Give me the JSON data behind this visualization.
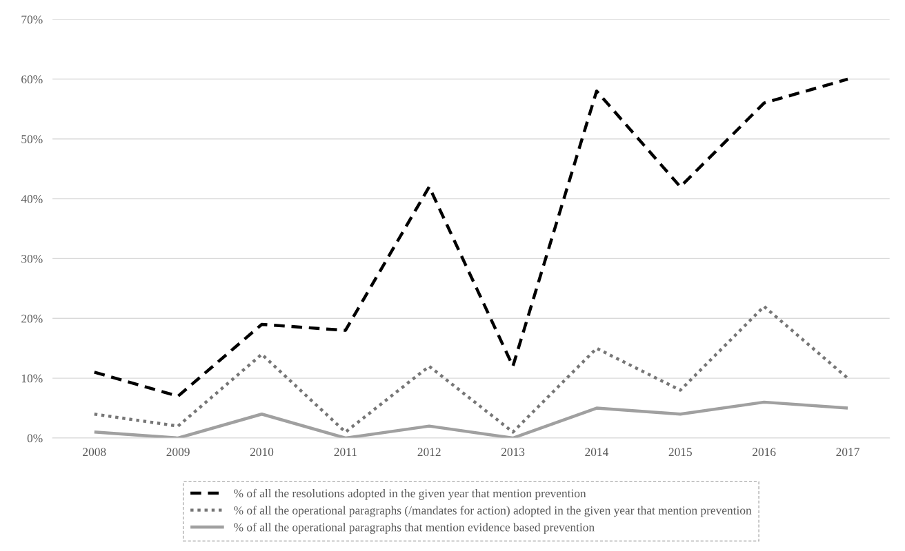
{
  "chart_data": {
    "type": "line",
    "categories": [
      "2008",
      "2009",
      "2010",
      "2011",
      "2012",
      "2013",
      "2014",
      "2015",
      "2016",
      "2017"
    ],
    "series": [
      {
        "name": "% of all the resolutions adopted in the given year that mention prevention",
        "color": "#000000",
        "line_style": "dashed",
        "values": [
          11,
          7,
          19,
          18,
          42,
          12,
          58,
          42,
          56,
          60
        ]
      },
      {
        "name": "% of all the operational paragraphs (/mandates for action) adopted in the given year that mention prevention",
        "color": "#767676",
        "line_style": "dotted",
        "values": [
          4,
          2,
          14,
          1,
          12,
          1,
          15,
          8,
          22,
          10
        ]
      },
      {
        "name": "% of all the operational paragraphs that mention evidence based prevention",
        "color": "#a0a0a0",
        "line_style": "solid",
        "values": [
          1,
          0,
          4,
          0,
          2,
          0,
          5,
          4,
          6,
          5
        ]
      }
    ],
    "ylim": [
      0,
      70
    ],
    "yticks": [
      {
        "value": 0,
        "label": "0%"
      },
      {
        "value": 10,
        "label": "10%"
      },
      {
        "value": 20,
        "label": "20%"
      },
      {
        "value": 30,
        "label": "30%"
      },
      {
        "value": 40,
        "label": "40%"
      },
      {
        "value": 50,
        "label": "50%"
      },
      {
        "value": 60,
        "label": "60%"
      },
      {
        "value": 70,
        "label": "70%"
      }
    ],
    "grid": "y",
    "legend": "bottom",
    "marker": "none"
  }
}
